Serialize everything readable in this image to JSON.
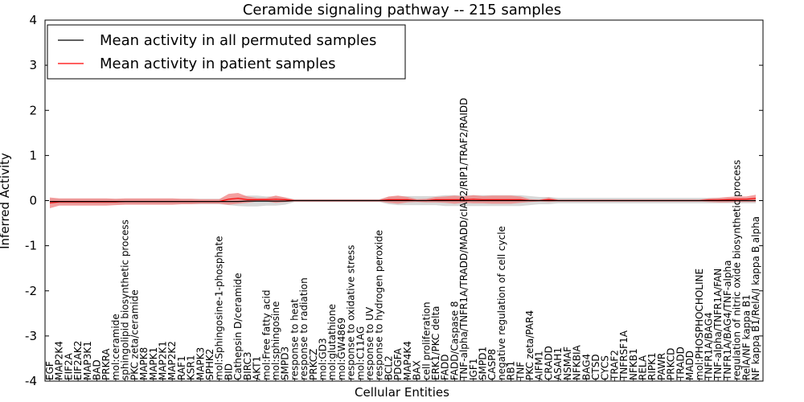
{
  "chart_data": {
    "type": "line",
    "title": "Ceramide signaling pathway -- 215 samples",
    "xlabel": "Cellular Entities",
    "ylabel": "Inferred Activity",
    "ylim": [
      -4,
      4
    ],
    "yticks": [
      -4,
      -3,
      -2,
      -1,
      0,
      1,
      2,
      3,
      4
    ],
    "legend": {
      "position": "top-left"
    },
    "categories": [
      "EGF",
      "MAP2K4",
      "EIF2A",
      "EIF2AK2",
      "MAP3K1",
      "BAD",
      "PRKRA",
      "mol:ceramide",
      "sphingolipid biosynthetic process",
      "PKC zeta/ceramide",
      "MAPK8",
      "MAPK1",
      "MAP2K1",
      "MAP2K2",
      "RAF1",
      "KSR1",
      "MAPK3",
      "SPHK2",
      "mol:Sphingosine-1-phosphate",
      "BID",
      "Cathepsin D/ceramide",
      "BIRC3",
      "AKT1",
      "mol:Free fatty acid",
      "mol:sphingosine",
      "SMPD3",
      "response to heat",
      "response to radiation",
      "PRKCZ",
      "mol:GD3",
      "mol:glutathione",
      "mol:GW4869",
      "response to oxidative stress",
      "mol:C11AG",
      "response to UV",
      "response to hydrogen peroxide",
      "BCL2",
      "PDGFA",
      "MAP4K4",
      "BAX",
      "cell proliferation",
      "ERK1/PKC delta",
      "FADD",
      "FADD/Caspase 8",
      "TNF-alpha/TNFR1A/TRADD/MADD/cIAP2/RIP1/TRAF2/RAIDD",
      "IGF1",
      "SMPD1",
      "CASP8",
      "negative regulation of cell cycle",
      "RB1",
      "TNF",
      "PKC zeta/PAR4",
      "AIFM1",
      "CRADD",
      "ASAH1",
      "NSMAF",
      "NFKBIA",
      "BAG4",
      "CTSD",
      "CYCS",
      "TRAF2",
      "TNFRSF1A",
      "NFKB1",
      "RELA",
      "RIPK1",
      "PAWR",
      "PRKCD",
      "TRADD",
      "MADD",
      "mol:PHOSPHOCHOLINE",
      "TNFR1A/BAG4",
      "TNF-alpha/TNFR1A/FAN",
      "TNFR1A/BAG4/TNF-alpha",
      "regulation of nitric oxide biosynthetic process",
      "RelA/NF kappa B1",
      "NF kappa B1/RelA/I kappa B alpha"
    ],
    "series": [
      {
        "name": "Mean activity in all permuted samples",
        "color": "#000000",
        "values": [
          -0.02,
          -0.02,
          -0.02,
          -0.02,
          -0.02,
          -0.02,
          -0.02,
          -0.02,
          -0.02,
          -0.02,
          -0.02,
          -0.02,
          -0.02,
          -0.02,
          -0.02,
          -0.02,
          -0.02,
          -0.02,
          -0.02,
          -0.02,
          -0.02,
          -0.01,
          -0.01,
          -0.01,
          -0.01,
          -0.01,
          0,
          0,
          0,
          0,
          0,
          0,
          0,
          0,
          0,
          0,
          0,
          0,
          0,
          0,
          0,
          0,
          0,
          0,
          0,
          0,
          0,
          0,
          0,
          0,
          0,
          0,
          0,
          0,
          0,
          0,
          0,
          0,
          0,
          0,
          0,
          0,
          0,
          0,
          0,
          0,
          0,
          0,
          0,
          0,
          0,
          0,
          0,
          0,
          0,
          0
        ],
        "band": [
          0.06,
          0.06,
          0.06,
          0.06,
          0.06,
          0.06,
          0.06,
          0.06,
          0.06,
          0.06,
          0.06,
          0.06,
          0.06,
          0.06,
          0.06,
          0.06,
          0.06,
          0.06,
          0.06,
          0.08,
          0.1,
          0.12,
          0.12,
          0.1,
          0.1,
          0.08,
          0.03,
          0.03,
          0.03,
          0.03,
          0.03,
          0.03,
          0.03,
          0.03,
          0.03,
          0.03,
          0.08,
          0.1,
          0.1,
          0.1,
          0.1,
          0.1,
          0.12,
          0.12,
          0.12,
          0.12,
          0.12,
          0.12,
          0.12,
          0.12,
          0.12,
          0.1,
          0.08,
          0.08,
          0.06,
          0.06,
          0.06,
          0.06,
          0.06,
          0.06,
          0.06,
          0.06,
          0.06,
          0.06,
          0.06,
          0.06,
          0.06,
          0.06,
          0.06,
          0.06,
          0.06,
          0.06,
          0.06,
          0.06,
          0.06,
          0.06
        ]
      },
      {
        "name": "Mean activity in patient samples",
        "color": "#ff0000",
        "values": [
          -0.05,
          -0.03,
          -0.03,
          -0.03,
          -0.03,
          -0.03,
          -0.03,
          -0.03,
          -0.02,
          -0.02,
          -0.02,
          -0.02,
          -0.02,
          -0.02,
          -0.02,
          -0.02,
          -0.02,
          -0.02,
          -0.02,
          0.03,
          0.05,
          0.02,
          0.02,
          0.02,
          0.03,
          0.02,
          0,
          0,
          0,
          0,
          0,
          0,
          0,
          0,
          0,
          0,
          0.02,
          0.02,
          0.02,
          0,
          0,
          0.02,
          0.02,
          0.02,
          0.02,
          0.03,
          0.02,
          0.02,
          0.02,
          0.02,
          0.02,
          0,
          0,
          0.02,
          0,
          0,
          0,
          0,
          0,
          0,
          0,
          0,
          0,
          0,
          0,
          0,
          0,
          0,
          0,
          0,
          0.01,
          0.01,
          0.02,
          0.03,
          0.03,
          0.05
        ],
        "band": [
          0.12,
          0.08,
          0.08,
          0.08,
          0.08,
          0.08,
          0.08,
          0.07,
          0.07,
          0.07,
          0.07,
          0.07,
          0.07,
          0.07,
          0.06,
          0.06,
          0.05,
          0.05,
          0.05,
          0.12,
          0.12,
          0.07,
          0.04,
          0.04,
          0.08,
          0.05,
          0.02,
          0.02,
          0.02,
          0.02,
          0.02,
          0.02,
          0.02,
          0.02,
          0.02,
          0.02,
          0.07,
          0.09,
          0.06,
          0.03,
          0.04,
          0.06,
          0.07,
          0.09,
          0.07,
          0.09,
          0.08,
          0.09,
          0.09,
          0.09,
          0.07,
          0.03,
          0.02,
          0.05,
          0.02,
          0.02,
          0.02,
          0.02,
          0.02,
          0.02,
          0.02,
          0.02,
          0.02,
          0.02,
          0.02,
          0.02,
          0.02,
          0.02,
          0.02,
          0.02,
          0.04,
          0.05,
          0.06,
          0.06,
          0.06,
          0.08
        ]
      }
    ]
  }
}
